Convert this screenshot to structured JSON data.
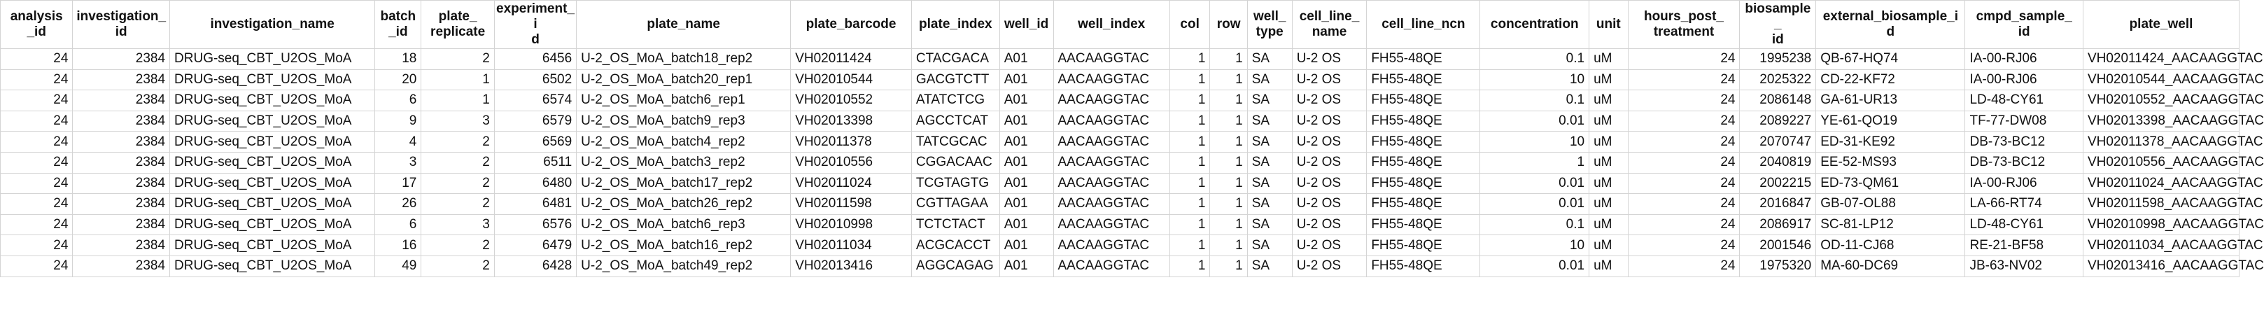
{
  "columns": [
    {
      "key": "analysis_id",
      "label": "analysis\n_id",
      "align": "num"
    },
    {
      "key": "investigation_id",
      "label": "investigation_\nid",
      "align": "num"
    },
    {
      "key": "investigation_name",
      "label": "investigation_name",
      "align": "txt"
    },
    {
      "key": "batch_id",
      "label": "batch\n_id",
      "align": "num"
    },
    {
      "key": "plate_replicate",
      "label": "plate_\nreplicate",
      "align": "num"
    },
    {
      "key": "experiment_id",
      "label": "experiment_i\nd",
      "align": "num"
    },
    {
      "key": "plate_name",
      "label": "plate_name",
      "align": "txt"
    },
    {
      "key": "plate_barcode",
      "label": "plate_barcode",
      "align": "txt"
    },
    {
      "key": "plate_index",
      "label": "plate_index",
      "align": "txt"
    },
    {
      "key": "well_id",
      "label": "well_id",
      "align": "txt"
    },
    {
      "key": "well_index",
      "label": "well_index",
      "align": "txt"
    },
    {
      "key": "col",
      "label": "col",
      "align": "num"
    },
    {
      "key": "row",
      "label": "row",
      "align": "num"
    },
    {
      "key": "well_type",
      "label": "well_\ntype",
      "align": "txt"
    },
    {
      "key": "cell_line_name",
      "label": "cell_line_\nname",
      "align": "txt"
    },
    {
      "key": "cell_line_ncn",
      "label": "cell_line_ncn",
      "align": "txt"
    },
    {
      "key": "concentration",
      "label": "concentration",
      "align": "num"
    },
    {
      "key": "unit",
      "label": "unit",
      "align": "txt"
    },
    {
      "key": "hours_post_treatment",
      "label": "hours_post_\ntreatment",
      "align": "num"
    },
    {
      "key": "biosample_id",
      "label": "biosample_\nid",
      "align": "num"
    },
    {
      "key": "external_biosample_id",
      "label": "external_biosample_i\nd",
      "align": "txt"
    },
    {
      "key": "cmpd_sample_id",
      "label": "cmpd_sample_\nid",
      "align": "txt"
    },
    {
      "key": "plate_well",
      "label": "plate_well",
      "align": "txt"
    }
  ],
  "rows": [
    [
      "24",
      "2384",
      "DRUG-seq_CBT_U2OS_MoA",
      "18",
      "2",
      "6456",
      "U-2_OS_MoA_batch18_rep2",
      "VH02011424",
      "CTACGACA",
      "A01",
      "AACAAGGTAC",
      "1",
      "1",
      "SA",
      "U-2 OS",
      "FH55-48QE",
      "0.1",
      "uM",
      "24",
      "1995238",
      "QB-67-HQ74",
      "IA-00-RJ06",
      "VH02011424_AACAAGGTAC"
    ],
    [
      "24",
      "2384",
      "DRUG-seq_CBT_U2OS_MoA",
      "20",
      "1",
      "6502",
      "U-2_OS_MoA_batch20_rep1",
      "VH02010544",
      "GACGTCTT",
      "A01",
      "AACAAGGTAC",
      "1",
      "1",
      "SA",
      "U-2 OS",
      "FH55-48QE",
      "10",
      "uM",
      "24",
      "2025322",
      "CD-22-KF72",
      "IA-00-RJ06",
      "VH02010544_AACAAGGTAC"
    ],
    [
      "24",
      "2384",
      "DRUG-seq_CBT_U2OS_MoA",
      "6",
      "1",
      "6574",
      "U-2_OS_MoA_batch6_rep1",
      "VH02010552",
      "ATATCTCG",
      "A01",
      "AACAAGGTAC",
      "1",
      "1",
      "SA",
      "U-2 OS",
      "FH55-48QE",
      "0.1",
      "uM",
      "24",
      "2086148",
      "GA-61-UR13",
      "LD-48-CY61",
      "VH02010552_AACAAGGTAC"
    ],
    [
      "24",
      "2384",
      "DRUG-seq_CBT_U2OS_MoA",
      "9",
      "3",
      "6579",
      "U-2_OS_MoA_batch9_rep3",
      "VH02013398",
      "AGCCTCAT",
      "A01",
      "AACAAGGTAC",
      "1",
      "1",
      "SA",
      "U-2 OS",
      "FH55-48QE",
      "0.01",
      "uM",
      "24",
      "2089227",
      "YE-61-QO19",
      "TF-77-DW08",
      "VH02013398_AACAAGGTAC"
    ],
    [
      "24",
      "2384",
      "DRUG-seq_CBT_U2OS_MoA",
      "4",
      "2",
      "6569",
      "U-2_OS_MoA_batch4_rep2",
      "VH02011378",
      "TATCGCAC",
      "A01",
      "AACAAGGTAC",
      "1",
      "1",
      "SA",
      "U-2 OS",
      "FH55-48QE",
      "10",
      "uM",
      "24",
      "2070747",
      "ED-31-KE92",
      "DB-73-BC12",
      "VH02011378_AACAAGGTAC"
    ],
    [
      "24",
      "2384",
      "DRUG-seq_CBT_U2OS_MoA",
      "3",
      "2",
      "6511",
      "U-2_OS_MoA_batch3_rep2",
      "VH02010556",
      "CGGACAAC",
      "A01",
      "AACAAGGTAC",
      "1",
      "1",
      "SA",
      "U-2 OS",
      "FH55-48QE",
      "1",
      "uM",
      "24",
      "2040819",
      "EE-52-MS93",
      "DB-73-BC12",
      "VH02010556_AACAAGGTAC"
    ],
    [
      "24",
      "2384",
      "DRUG-seq_CBT_U2OS_MoA",
      "17",
      "2",
      "6480",
      "U-2_OS_MoA_batch17_rep2",
      "VH02011024",
      "TCGTAGTG",
      "A01",
      "AACAAGGTAC",
      "1",
      "1",
      "SA",
      "U-2 OS",
      "FH55-48QE",
      "0.01",
      "uM",
      "24",
      "2002215",
      "ED-73-QM61",
      "IA-00-RJ06",
      "VH02011024_AACAAGGTAC"
    ],
    [
      "24",
      "2384",
      "DRUG-seq_CBT_U2OS_MoA",
      "26",
      "2",
      "6481",
      "U-2_OS_MoA_batch26_rep2",
      "VH02011598",
      "CGTTAGAA",
      "A01",
      "AACAAGGTAC",
      "1",
      "1",
      "SA",
      "U-2 OS",
      "FH55-48QE",
      "0.01",
      "uM",
      "24",
      "2016847",
      "GB-07-OL88",
      "LA-66-RT74",
      "VH02011598_AACAAGGTAC"
    ],
    [
      "24",
      "2384",
      "DRUG-seq_CBT_U2OS_MoA",
      "6",
      "3",
      "6576",
      "U-2_OS_MoA_batch6_rep3",
      "VH02010998",
      "TCTCTACT",
      "A01",
      "AACAAGGTAC",
      "1",
      "1",
      "SA",
      "U-2 OS",
      "FH55-48QE",
      "0.1",
      "uM",
      "24",
      "2086917",
      "SC-81-LP12",
      "LD-48-CY61",
      "VH02010998_AACAAGGTAC"
    ],
    [
      "24",
      "2384",
      "DRUG-seq_CBT_U2OS_MoA",
      "16",
      "2",
      "6479",
      "U-2_OS_MoA_batch16_rep2",
      "VH02011034",
      "ACGCACCT",
      "A01",
      "AACAAGGTAC",
      "1",
      "1",
      "SA",
      "U-2 OS",
      "FH55-48QE",
      "10",
      "uM",
      "24",
      "2001546",
      "OD-11-CJ68",
      "RE-21-BF58",
      "VH02011034_AACAAGGTAC"
    ],
    [
      "24",
      "2384",
      "DRUG-seq_CBT_U2OS_MoA",
      "49",
      "2",
      "6428",
      "U-2_OS_MoA_batch49_rep2",
      "VH02013416",
      "AGGCAGAG",
      "A01",
      "AACAAGGTAC",
      "1",
      "1",
      "SA",
      "U-2 OS",
      "FH55-48QE",
      "0.01",
      "uM",
      "24",
      "1975320",
      "MA-60-DC69",
      "JB-63-NV02",
      "VH02013416_AACAAGGTAC"
    ]
  ]
}
